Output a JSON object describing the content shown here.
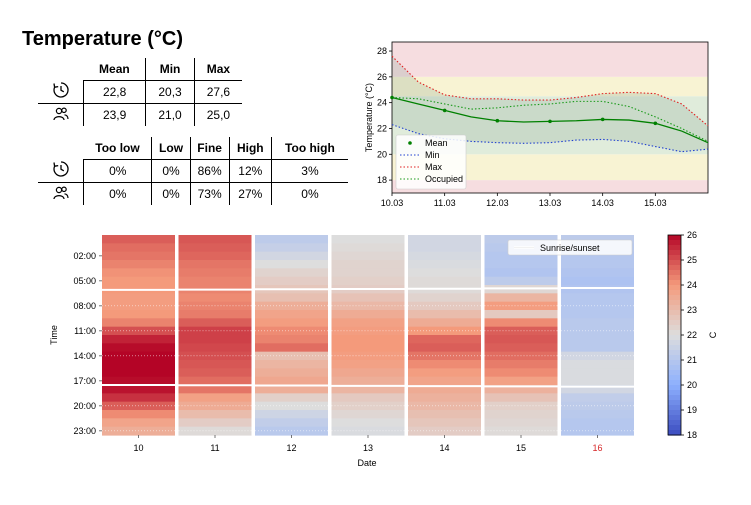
{
  "title": "Temperature (°C)",
  "table1": {
    "headers": [
      "Mean",
      "Min",
      "Max"
    ],
    "rows": [
      {
        "icon": "history-icon",
        "values": [
          "22,8",
          "20,3",
          "27,6"
        ]
      },
      {
        "icon": "people-icon",
        "values": [
          "23,9",
          "21,0",
          "25,0"
        ]
      }
    ]
  },
  "table2": {
    "headers": [
      "Too low",
      "Low",
      "Fine",
      "High",
      "Too high"
    ],
    "rows": [
      {
        "icon": "history-icon",
        "values": [
          "0%",
          "0%",
          "86%",
          "12%",
          "3%"
        ]
      },
      {
        "icon": "people-icon",
        "values": [
          "0%",
          "0%",
          "73%",
          "27%",
          "0%"
        ]
      }
    ]
  },
  "chart_data": [
    {
      "type": "line",
      "ylabel": "Temperature (°C)",
      "xlabel": "",
      "xticks": [
        "10.03",
        "11.03",
        "12.03",
        "13.03",
        "14.03",
        "15.03"
      ],
      "yticks": [
        "18",
        "20",
        "22",
        "24",
        "26",
        "28"
      ],
      "xlim": [
        0,
        6
      ],
      "ylim": [
        17,
        28.7
      ],
      "bands": [
        {
          "from": 17,
          "to": 18,
          "color": "#f6dde0"
        },
        {
          "from": 18,
          "to": 20,
          "color": "#f8f3d3"
        },
        {
          "from": 20,
          "to": 24.5,
          "color": "#e0ecdb"
        },
        {
          "from": 24.5,
          "to": 26,
          "color": "#f8f3d3"
        },
        {
          "from": 26,
          "to": 28.7,
          "color": "#f6dde0"
        }
      ],
      "legend": "lower-left",
      "series": [
        {
          "name": "Mean",
          "color": "#008000",
          "style": "solid",
          "x": [
            0,
            0.5,
            1,
            1.5,
            2,
            2.5,
            3,
            3.5,
            4,
            4.5,
            5,
            5.5,
            6
          ],
          "y": [
            24.4,
            23.9,
            23.4,
            22.9,
            22.6,
            22.5,
            22.55,
            22.6,
            22.7,
            22.65,
            22.4,
            21.8,
            20.9
          ]
        },
        {
          "name": "Min",
          "color": "#1f3fd0",
          "style": "dotted",
          "x": [
            0,
            0.5,
            1,
            1.5,
            2,
            2.5,
            3,
            3.5,
            4,
            4.5,
            5,
            5.5,
            6
          ],
          "y": [
            22.3,
            21.6,
            21.2,
            21.0,
            20.9,
            20.85,
            20.9,
            21.1,
            21.15,
            21.0,
            20.6,
            20.2,
            20.4
          ]
        },
        {
          "name": "Max",
          "color": "#e02020",
          "style": "dotted",
          "x": [
            0,
            0.5,
            1,
            1.5,
            2,
            2.5,
            3,
            3.5,
            4,
            4.5,
            5,
            5.5,
            6
          ],
          "y": [
            27.6,
            25.6,
            24.6,
            24.3,
            24.3,
            24.2,
            24.2,
            24.4,
            24.7,
            24.8,
            24.7,
            23.9,
            22.2
          ]
        },
        {
          "name": "Occupied",
          "color": "#1a9a1a",
          "style": "dotted",
          "x": [
            0,
            0.5,
            1,
            1.5,
            2,
            2.5,
            3,
            3.5,
            4,
            4.5,
            5,
            5.5,
            6
          ],
          "y": [
            24.4,
            24.3,
            23.9,
            23.5,
            23.6,
            23.8,
            23.9,
            24.1,
            24.1,
            23.7,
            22.9,
            22.0,
            21.0
          ]
        }
      ],
      "markers": {
        "series": "Mean",
        "x": [
          0,
          1,
          2,
          3,
          4,
          5
        ],
        "y": [
          24.4,
          23.4,
          22.6,
          22.55,
          22.7,
          22.4
        ]
      }
    },
    {
      "type": "heatmap",
      "xlabel": "Date",
      "ylabel": "Time",
      "xticks": [
        "10",
        "11",
        "12",
        "13",
        "14",
        "15",
        "16"
      ],
      "highlight_tick": {
        "label": "16",
        "color": "#d62728"
      },
      "yticks": [
        "02:00",
        "05:00",
        "08:00",
        "11:00",
        "14:00",
        "17:00",
        "20:00",
        "23:00"
      ],
      "legend": {
        "label": "Sunrise/sunset",
        "placement": "top-right"
      },
      "colorbar": {
        "label": "C",
        "ticks": [
          "18",
          "19",
          "20",
          "21",
          "22",
          "23",
          "24",
          "25",
          "26"
        ],
        "range": [
          18,
          26
        ]
      },
      "hourly_by_day": {
        "10": [
          24.8,
          24.6,
          24.5,
          24.3,
          24.1,
          24.0,
          24.0,
          23.9,
          23.9,
          24.0,
          24.3,
          25.0,
          25.6,
          25.9,
          26.0,
          26.0,
          26.0,
          25.9,
          25.8,
          25.4,
          24.8,
          24.2,
          23.7,
          23.4
        ],
        "11": [
          24.9,
          24.8,
          24.7,
          24.5,
          24.4,
          24.3,
          24.3,
          24.2,
          24.3,
          24.4,
          24.8,
          25.2,
          25.2,
          25.1,
          25.0,
          24.9,
          24.8,
          24.6,
          24.5,
          23.8,
          23.5,
          23.0,
          22.5,
          22.1
        ],
        "12": [
          21.2,
          21.4,
          21.7,
          22.0,
          22.3,
          22.5,
          22.7,
          22.9,
          23.4,
          23.7,
          23.9,
          24.2,
          24.3,
          24.6,
          22.9,
          23.2,
          23.4,
          23.6,
          23.4,
          22.4,
          22.0,
          21.6,
          21.3,
          21.1
        ],
        "13": [
          22.0,
          22.1,
          22.2,
          22.3,
          22.3,
          22.4,
          22.5,
          22.8,
          23.1,
          23.5,
          23.8,
          23.9,
          24.0,
          24.0,
          23.9,
          23.8,
          23.6,
          23.4,
          23.2,
          22.6,
          22.4,
          22.2,
          22.0,
          21.9
        ],
        "14": [
          21.7,
          21.7,
          21.8,
          21.9,
          22.0,
          22.1,
          22.1,
          22.3,
          22.6,
          23.0,
          23.5,
          24.0,
          24.7,
          24.8,
          24.5,
          24.2,
          23.9,
          23.7,
          23.5,
          23.3,
          23.1,
          22.9,
          22.7,
          22.5
        ],
        "15": [
          21.2,
          21.1,
          21.0,
          21.0,
          20.9,
          21.2,
          22.2,
          23.2,
          23.9,
          22.6,
          24.2,
          24.8,
          24.9,
          24.8,
          24.6,
          24.4,
          24.2,
          23.8,
          23.3,
          22.8,
          22.4,
          22.3,
          22.2,
          22.1
        ],
        "16": [
          21.2,
          21.1,
          21.0,
          21.0,
          20.9,
          20.8,
          20.9,
          21.0,
          21.0,
          21.0,
          21.1,
          21.1,
          21.1,
          21.1,
          21.7,
          21.9,
          21.9,
          21.9,
          21.7,
          21.3,
          21.2,
          21.1,
          21.0,
          21.0
        ]
      },
      "sunrise_sunset": {
        "10": [
          "06:35",
          "18:00"
        ],
        "11": [
          "06:33",
          "18:02"
        ],
        "12": [
          "06:31",
          "18:04"
        ],
        "13": [
          "06:29",
          "18:06"
        ],
        "14": [
          "06:27",
          "18:08"
        ],
        "15": [
          "06:24",
          "18:10"
        ],
        "16": [
          "06:22",
          "18:12"
        ]
      }
    }
  ]
}
